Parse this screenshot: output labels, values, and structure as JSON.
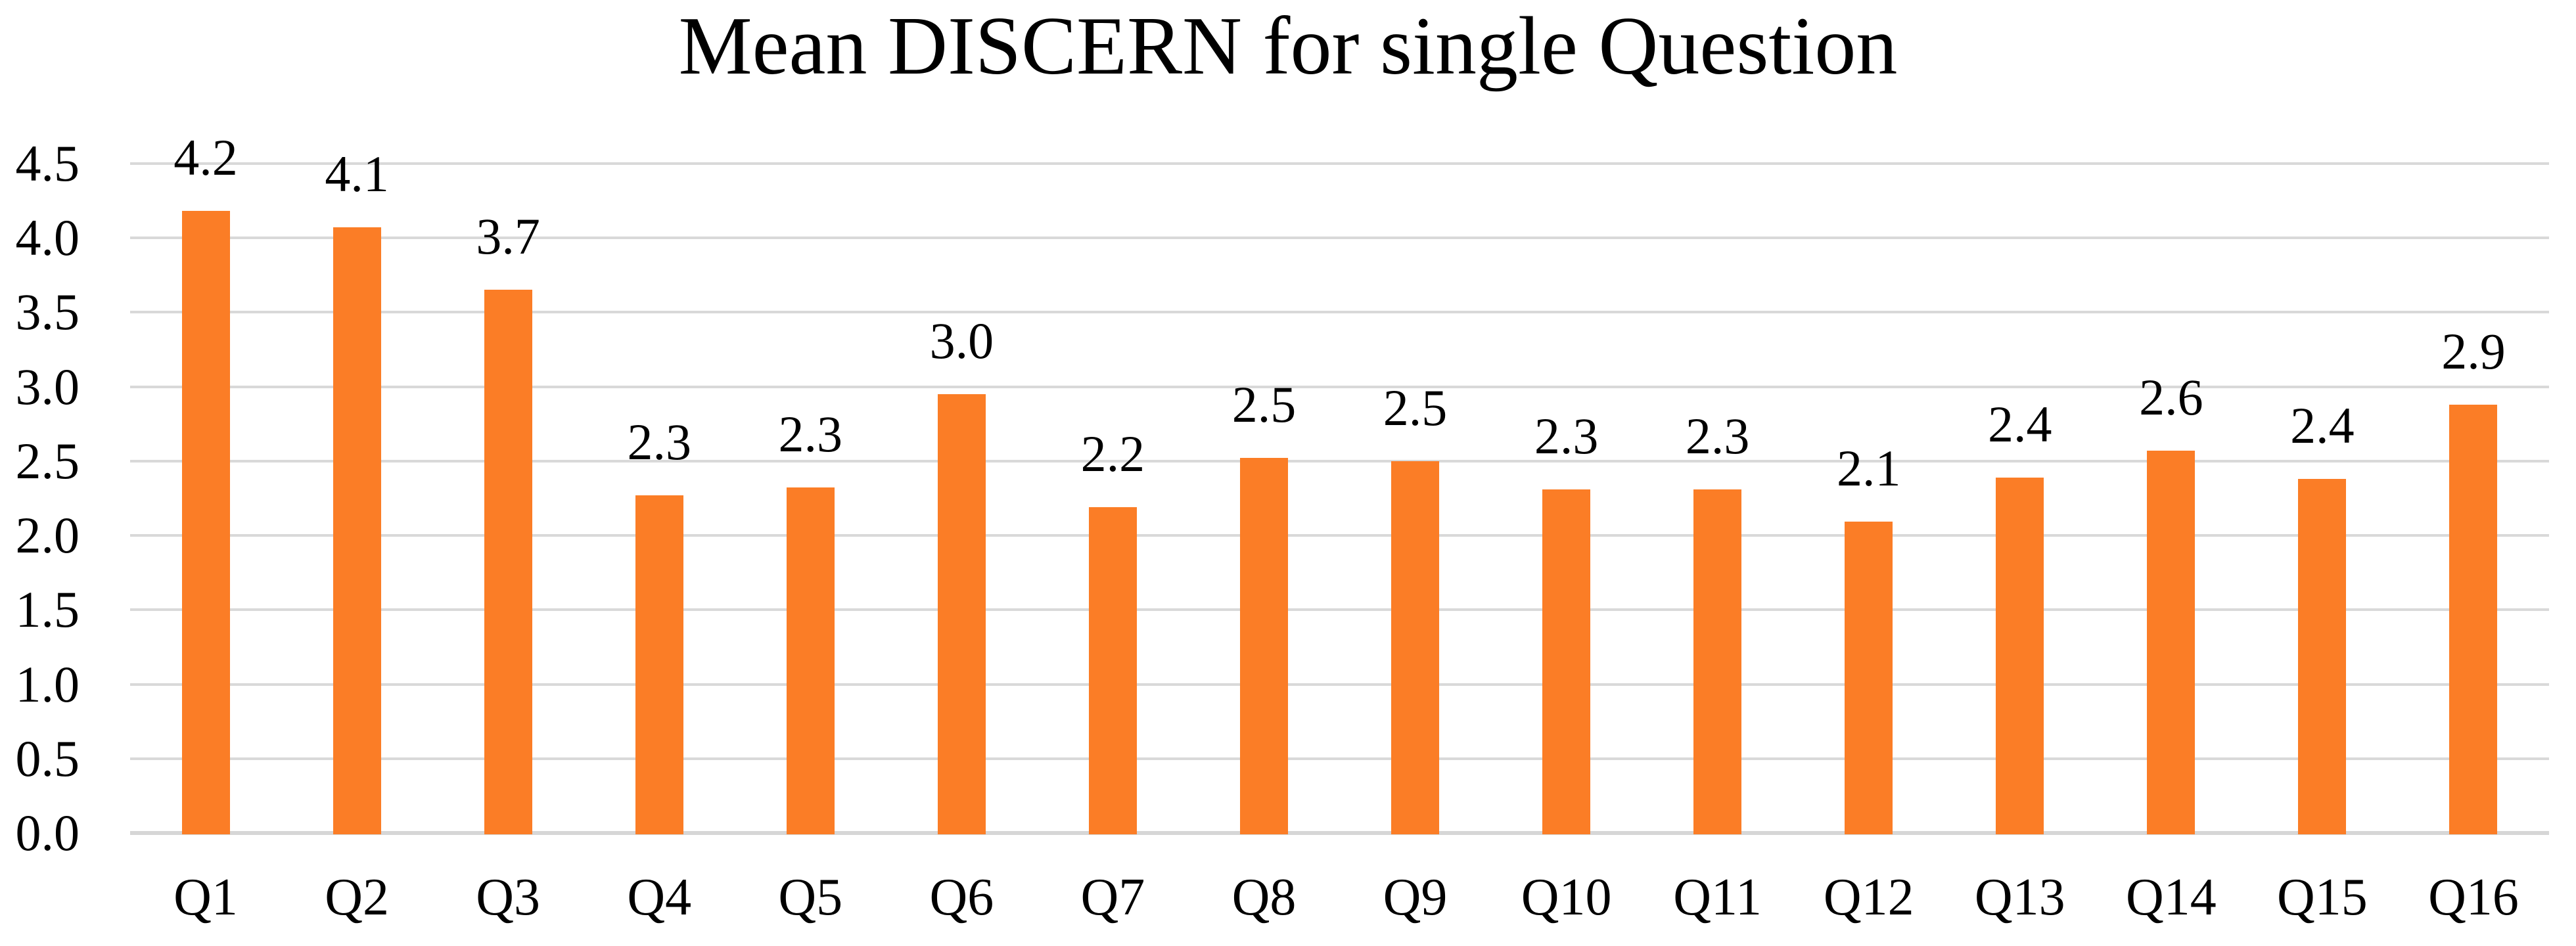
{
  "title": "Mean DISCERN for single Question",
  "colors": {
    "bar": "#FB7D26",
    "gridline": "#D9D9D9",
    "axis_line": "#D6D6D6",
    "text": "#000000",
    "background": "#FFFFFF"
  },
  "chart_data": {
    "type": "bar",
    "title": "Mean DISCERN for single Question",
    "categories": [
      "Q1",
      "Q2",
      "Q3",
      "Q4",
      "Q5",
      "Q6",
      "Q7",
      "Q8",
      "Q9",
      "Q10",
      "Q11",
      "Q12",
      "Q13",
      "Q14",
      "Q15",
      "Q16"
    ],
    "values": [
      4.2,
      4.1,
      3.7,
      2.3,
      2.3,
      3.0,
      2.2,
      2.5,
      2.5,
      2.3,
      2.3,
      2.1,
      2.4,
      2.6,
      2.4,
      2.9
    ],
    "data_labels": [
      "4.2",
      "4.1",
      "3.7",
      "2.3",
      "2.3",
      "3.0",
      "2.2",
      "2.5",
      "2.5",
      "2.3",
      "2.3",
      "2.1",
      "2.4",
      "2.6",
      "2.4",
      "2.9"
    ],
    "bar_heights_precise": [
      4.19,
      4.08,
      3.66,
      2.28,
      2.33,
      2.96,
      2.2,
      2.53,
      2.51,
      2.32,
      2.32,
      2.1,
      2.4,
      2.58,
      2.39,
      2.89
    ],
    "xlabel": "",
    "ylabel": "",
    "ylim": [
      0,
      4.5
    ],
    "ytick_step": 0.5,
    "yticks": [
      "0.0",
      "0.5",
      "1.0",
      "1.5",
      "2.0",
      "2.5",
      "3.0",
      "3.5",
      "4.0",
      "4.5"
    ],
    "grid": true,
    "legend": false,
    "series_color": "#FB7D26"
  }
}
